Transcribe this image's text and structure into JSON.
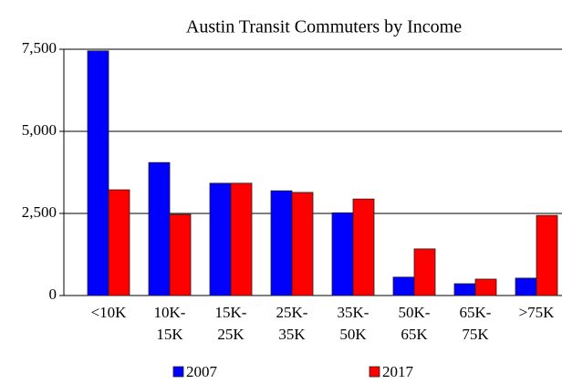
{
  "chart_data": {
    "type": "bar",
    "title": "Austin Transit Commuters by Income",
    "categories": [
      "<10K",
      "10K-15K",
      "15K-25K",
      "25K-35K",
      "35K-50K",
      "50K-65K",
      "65K-75K",
      ">75K"
    ],
    "series": [
      {
        "name": "2007",
        "color": "#0000ff",
        "values": [
          7450,
          4050,
          3420,
          3190,
          2520,
          560,
          360,
          530
        ]
      },
      {
        "name": "2017",
        "color": "#ff0000",
        "values": [
          3220,
          2470,
          3420,
          3140,
          2940,
          1420,
          500,
          2440
        ]
      }
    ],
    "ylim": [
      0,
      7500
    ],
    "yticks": [
      0,
      {
        "value": 2500,
        "label": "2,500"
      },
      {
        "value": 5000,
        "label": "5,000"
      },
      {
        "value": 7500,
        "label": "7,500"
      }
    ],
    "grid": true
  }
}
